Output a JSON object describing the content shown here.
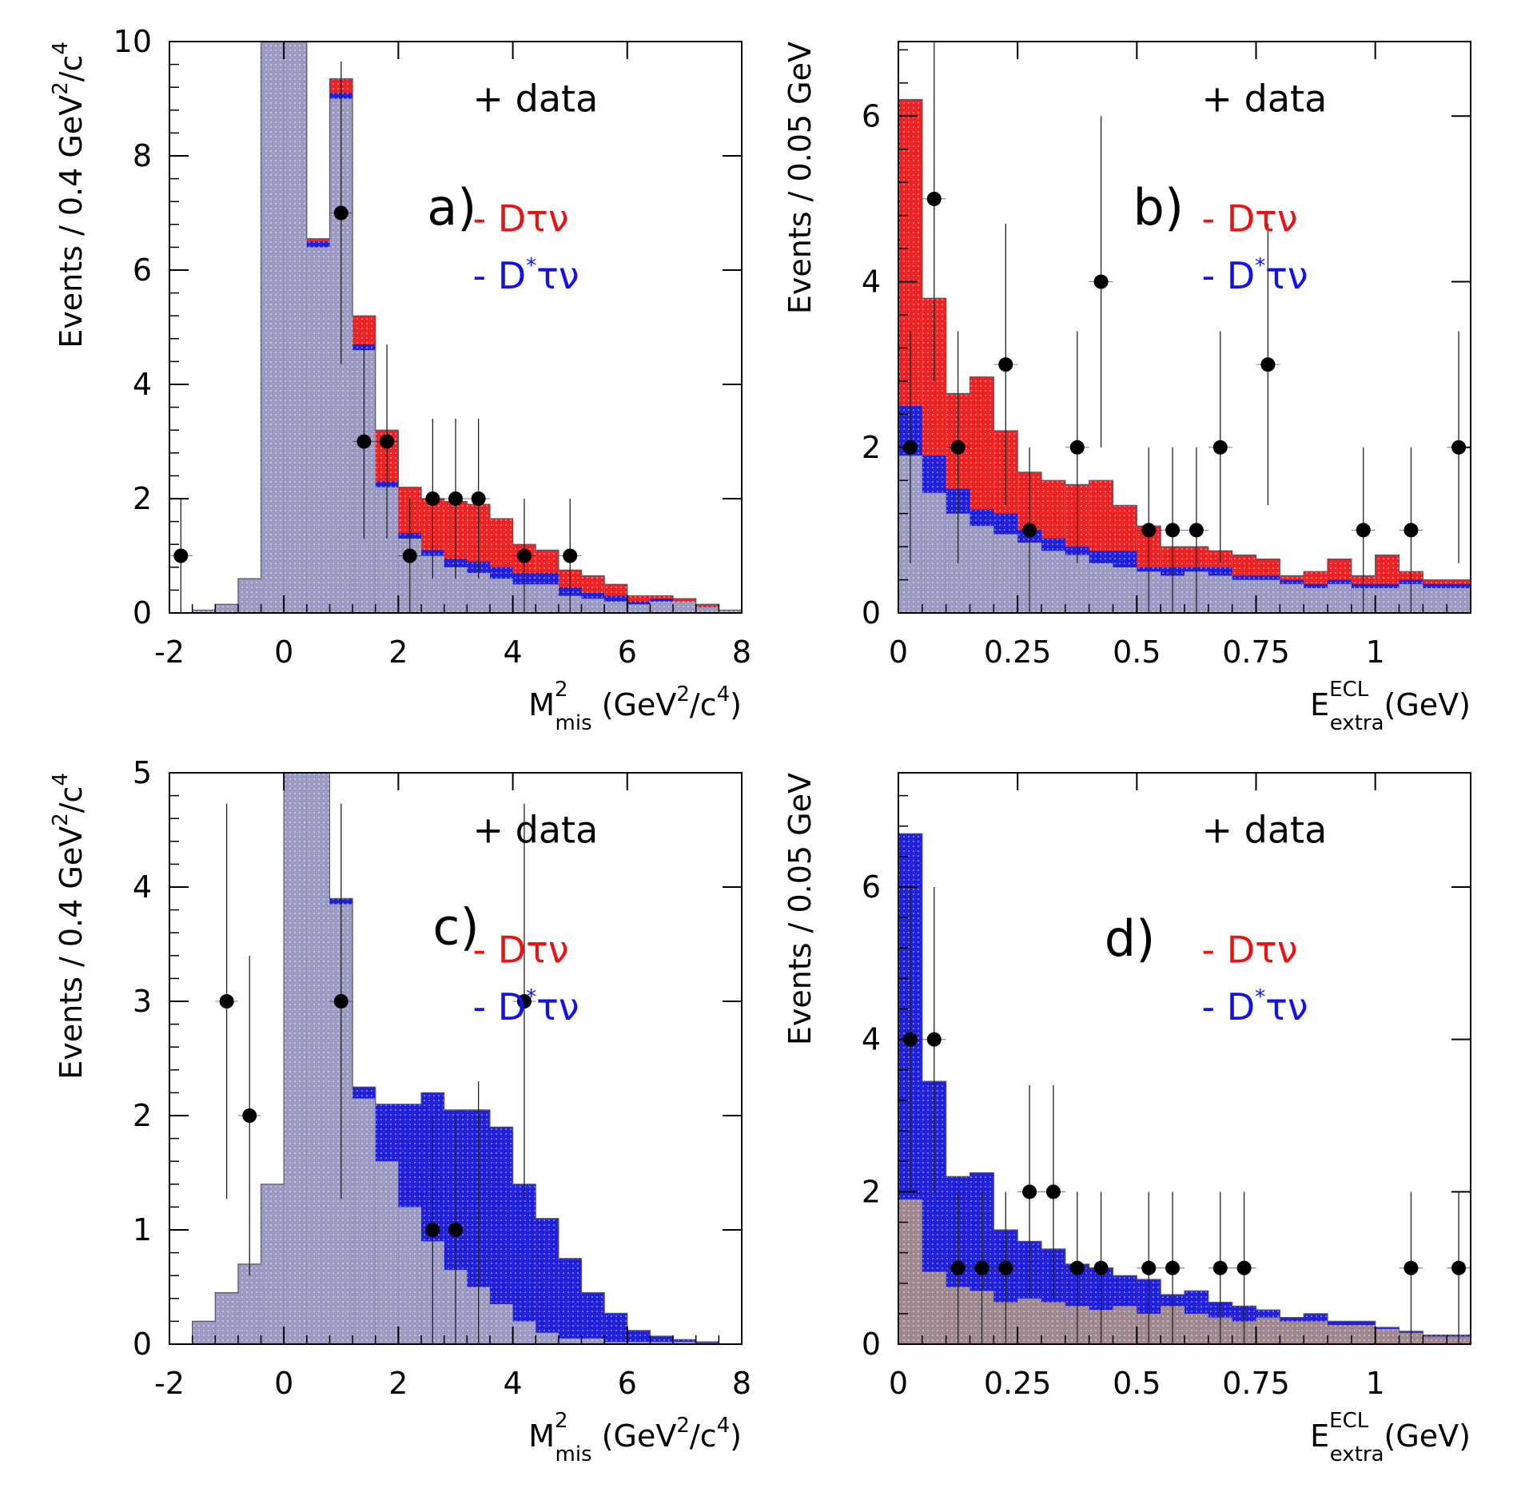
{
  "chart_data": [
    {
      "id": "a",
      "type": "histogram",
      "panel_label": "a)",
      "xlabel": {
        "main": "M",
        "sup": "2",
        "sub": "mis",
        "rest": " (GeV",
        "sup2": "2",
        "rest2": "/c",
        "sup3": "4",
        "rest3": ")"
      },
      "ylabel": {
        "main": "Events / 0.4 GeV",
        "sup": "2",
        "rest": "/c",
        "sup2": "4"
      },
      "xlim": [
        -2,
        8
      ],
      "ylim": [
        0,
        10
      ],
      "xticks": [
        -2,
        0,
        2,
        4,
        6,
        8
      ],
      "xtick_labels": [
        "-2",
        "0",
        "2",
        "4",
        "6",
        "8"
      ],
      "yticks": [
        0,
        2,
        4,
        6,
        8,
        10
      ],
      "ytick_labels": [
        "0",
        "2",
        "4",
        "6",
        "8",
        "10"
      ],
      "bin_edges": [
        -2.0,
        -1.6,
        -1.2,
        -0.8,
        -0.4,
        0.0,
        0.4,
        0.8,
        1.2,
        1.6,
        2.0,
        2.4,
        2.8,
        3.2,
        3.6,
        4.0,
        4.4,
        4.8,
        5.2,
        5.6,
        6.0,
        6.4,
        6.8,
        7.2,
        7.6,
        8.0
      ],
      "stack": [
        {
          "name": "background",
          "color": "#9a9ac2",
          "values": [
            0,
            0.05,
            0.15,
            0.6,
            10,
            10,
            6.4,
            9.0,
            4.6,
            2.2,
            1.3,
            1.0,
            0.8,
            0.7,
            0.6,
            0.5,
            0.5,
            0.3,
            0.25,
            0.2,
            0.15,
            0.2,
            0.2,
            0.1,
            0.05
          ]
        },
        {
          "name": "D*τν",
          "color": "#2020dd",
          "values": [
            0,
            0,
            0,
            0,
            0,
            0,
            0.1,
            0.1,
            0.1,
            0.1,
            0.1,
            0.1,
            0.15,
            0.2,
            0.2,
            0.2,
            0.2,
            0.15,
            0.1,
            0.1,
            0.05,
            0.05,
            0,
            0,
            0
          ]
        },
        {
          "name": "Dτν",
          "color": "#ee2222",
          "values": [
            0,
            0,
            0,
            0,
            0,
            0,
            0.05,
            0.25,
            0.5,
            0.9,
            0.8,
            0.9,
            1.0,
            1.0,
            0.85,
            0.5,
            0.4,
            0.3,
            0.3,
            0.2,
            0.1,
            0.05,
            0.05,
            0.05,
            0
          ]
        }
      ],
      "data_points": [
        {
          "x": -1.8,
          "y": 1,
          "err": 1
        },
        {
          "x": 1.0,
          "y": 7,
          "err": 2.65
        },
        {
          "x": 1.4,
          "y": 3,
          "err": 1.7
        },
        {
          "x": 1.8,
          "y": 3,
          "err": 1.7
        },
        {
          "x": 2.2,
          "y": 1,
          "err": 1
        },
        {
          "x": 2.6,
          "y": 2,
          "err": 1.4
        },
        {
          "x": 3.0,
          "y": 2,
          "err": 1.4
        },
        {
          "x": 3.4,
          "y": 2,
          "err": 1.4
        },
        {
          "x": 4.2,
          "y": 1,
          "err": 1
        },
        {
          "x": 5.0,
          "y": 1,
          "err": 1
        }
      ],
      "legend": [
        {
          "prefix": "+ ",
          "text": "data",
          "color": "#000000"
        },
        {
          "prefix": "- ",
          "text": "Dτν",
          "color": "#ee1111"
        },
        {
          "prefix": "- ",
          "text": "D*τν",
          "color": "#1111ee"
        }
      ]
    },
    {
      "id": "b",
      "type": "histogram",
      "panel_label": "b)",
      "xlabel": {
        "main": "E",
        "sup": "ECL",
        "sub": "extra",
        "rest": "(GeV)"
      },
      "ylabel": {
        "main": "Events / 0.05 GeV"
      },
      "xlim": [
        0,
        1.2
      ],
      "ylim": [
        0,
        6.9
      ],
      "xticks": [
        0,
        0.25,
        0.5,
        0.75,
        1
      ],
      "xtick_labels": [
        "0",
        "0.25",
        "0.5",
        "0.75",
        "1"
      ],
      "yticks": [
        0,
        2,
        4,
        6
      ],
      "ytick_labels": [
        "0",
        "2",
        "4",
        "6"
      ],
      "bin_edges": [
        0.0,
        0.05,
        0.1,
        0.15,
        0.2,
        0.25,
        0.3,
        0.35,
        0.4,
        0.45,
        0.5,
        0.55,
        0.6,
        0.65,
        0.7,
        0.75,
        0.8,
        0.85,
        0.9,
        0.95,
        1.0,
        1.05,
        1.1,
        1.15,
        1.2
      ],
      "stack": [
        {
          "name": "background",
          "color": "#9a9ac2",
          "values": [
            1.9,
            1.45,
            1.2,
            1.05,
            0.95,
            0.85,
            0.75,
            0.7,
            0.6,
            0.55,
            0.5,
            0.45,
            0.5,
            0.45,
            0.4,
            0.4,
            0.35,
            0.3,
            0.35,
            0.3,
            0.3,
            0.35,
            0.3,
            0.3
          ]
        },
        {
          "name": "D*τν",
          "color": "#2020dd",
          "values": [
            0.6,
            0.45,
            0.3,
            0.2,
            0.25,
            0.15,
            0.15,
            0.1,
            0.15,
            0.2,
            0.05,
            0.1,
            0.05,
            0.1,
            0.05,
            0.05,
            0.05,
            0.05,
            0.05,
            0.05,
            0.05,
            0.05,
            0.05,
            0.05
          ]
        },
        {
          "name": "Dτν",
          "color": "#ee2222",
          "values": [
            3.7,
            1.9,
            1.15,
            1.6,
            1.0,
            0.7,
            0.7,
            0.75,
            0.85,
            0.55,
            0.5,
            0.25,
            0.25,
            0.2,
            0.25,
            0.2,
            0.05,
            0.15,
            0.25,
            0.1,
            0.35,
            0.1,
            0.05,
            0.05
          ]
        }
      ],
      "data_points": [
        {
          "x": 0.025,
          "y": 2,
          "err": 1.4
        },
        {
          "x": 0.075,
          "y": 5,
          "err": 2.2
        },
        {
          "x": 0.125,
          "y": 2,
          "err": 1.4
        },
        {
          "x": 0.225,
          "y": 3,
          "err": 1.7
        },
        {
          "x": 0.275,
          "y": 1,
          "err": 1
        },
        {
          "x": 0.375,
          "y": 2,
          "err": 1.4
        },
        {
          "x": 0.425,
          "y": 4,
          "err": 2
        },
        {
          "x": 0.525,
          "y": 1,
          "err": 1
        },
        {
          "x": 0.575,
          "y": 1,
          "err": 1
        },
        {
          "x": 0.625,
          "y": 1,
          "err": 1
        },
        {
          "x": 0.675,
          "y": 2,
          "err": 1.4
        },
        {
          "x": 0.775,
          "y": 3,
          "err": 1.7
        },
        {
          "x": 0.975,
          "y": 1,
          "err": 1
        },
        {
          "x": 1.075,
          "y": 1,
          "err": 1
        },
        {
          "x": 1.175,
          "y": 2,
          "err": 1.4
        }
      ],
      "legend": [
        {
          "prefix": "+ ",
          "text": "data",
          "color": "#000000"
        },
        {
          "prefix": "- ",
          "text": "Dτν",
          "color": "#ee1111"
        },
        {
          "prefix": "- ",
          "text": "D*τν",
          "color": "#1111ee"
        }
      ]
    },
    {
      "id": "c",
      "type": "histogram",
      "panel_label": "c)",
      "xlabel": {
        "main": "M",
        "sup": "2",
        "sub": "mis",
        "rest": " (GeV",
        "sup2": "2",
        "rest2": "/c",
        "sup3": "4",
        "rest3": ")"
      },
      "ylabel": {
        "main": "Events / 0.4 GeV",
        "sup": "2",
        "rest": "/c",
        "sup2": "4"
      },
      "xlim": [
        -2,
        8
      ],
      "ylim": [
        0,
        5
      ],
      "xticks": [
        -2,
        0,
        2,
        4,
        6,
        8
      ],
      "xtick_labels": [
        "-2",
        "0",
        "2",
        "4",
        "6",
        "8"
      ],
      "yticks": [
        0,
        1,
        2,
        3,
        4,
        5
      ],
      "ytick_labels": [
        "0",
        "1",
        "2",
        "3",
        "4",
        "5"
      ],
      "bin_edges": [
        -2.0,
        -1.6,
        -1.2,
        -0.8,
        -0.4,
        0.0,
        0.4,
        0.8,
        1.2,
        1.6,
        2.0,
        2.4,
        2.8,
        3.2,
        3.6,
        4.0,
        4.4,
        4.8,
        5.2,
        5.6,
        6.0,
        6.4,
        6.8,
        7.2,
        7.6,
        8.0
      ],
      "stack": [
        {
          "name": "background",
          "color": "#9a9ac2",
          "values": [
            0,
            0.2,
            0.45,
            0.7,
            1.4,
            5,
            5,
            3.85,
            2.15,
            1.6,
            1.2,
            0.9,
            0.65,
            0.5,
            0.35,
            0.2,
            0.1,
            0.05,
            0.05,
            0.02,
            0.02,
            0.02,
            0.02,
            0.01,
            0
          ]
        },
        {
          "name": "D*τν",
          "color": "#2020dd",
          "values": [
            0,
            0,
            0,
            0,
            0,
            0,
            0,
            0.05,
            0.1,
            0.5,
            0.9,
            1.3,
            1.4,
            1.55,
            1.55,
            1.2,
            1.0,
            0.7,
            0.4,
            0.25,
            0.1,
            0.05,
            0.02,
            0.01,
            0
          ]
        },
        {
          "name": "Dτν",
          "color": "#ee2222",
          "values": [
            0,
            0,
            0,
            0,
            0,
            0,
            0,
            0,
            0,
            0,
            0,
            0,
            0,
            0,
            0,
            0,
            0,
            0,
            0,
            0,
            0,
            0,
            0,
            0,
            0
          ]
        }
      ],
      "data_points": [
        {
          "x": -1.0,
          "y": 3,
          "err": 1.73
        },
        {
          "x": -0.6,
          "y": 2,
          "err": 1.4
        },
        {
          "x": 1.0,
          "y": 3,
          "err": 1.73
        },
        {
          "x": 2.6,
          "y": 1,
          "err": 1
        },
        {
          "x": 3.0,
          "y": 1,
          "err": 1
        },
        {
          "x": 3.4,
          "y": 0,
          "err": 2.3
        },
        {
          "x": 4.2,
          "y": 3,
          "err": 1.73
        }
      ],
      "legend": [
        {
          "prefix": "+ ",
          "text": "data",
          "color": "#000000"
        },
        {
          "prefix": "- ",
          "text": "Dτν",
          "color": "#ee1111"
        },
        {
          "prefix": "- ",
          "text": "D*τν",
          "color": "#1111ee"
        }
      ]
    },
    {
      "id": "d",
      "type": "histogram",
      "panel_label": "d)",
      "xlabel": {
        "main": "E",
        "sup": "ECL",
        "sub": "extra",
        "rest": "(GeV)"
      },
      "ylabel": {
        "main": "Events / 0.05 GeV"
      },
      "xlim": [
        0,
        1.2
      ],
      "ylim": [
        0,
        7.5
      ],
      "xticks": [
        0,
        0.25,
        0.5,
        0.75,
        1
      ],
      "xtick_labels": [
        "0",
        "0.25",
        "0.5",
        "0.75",
        "1"
      ],
      "yticks": [
        0,
        2,
        4,
        6
      ],
      "ytick_labels": [
        "0",
        "2",
        "4",
        "6"
      ],
      "bin_edges": [
        0.0,
        0.05,
        0.1,
        0.15,
        0.2,
        0.25,
        0.3,
        0.35,
        0.4,
        0.45,
        0.5,
        0.55,
        0.6,
        0.65,
        0.7,
        0.75,
        0.8,
        0.85,
        0.9,
        0.95,
        1.0,
        1.05,
        1.1,
        1.15,
        1.2
      ],
      "stack": [
        {
          "name": "background",
          "color": "#a08890",
          "values": [
            1.9,
            0.95,
            0.75,
            0.7,
            0.55,
            0.6,
            0.55,
            0.5,
            0.45,
            0.5,
            0.4,
            0.5,
            0.4,
            0.35,
            0.3,
            0.35,
            0.3,
            0.3,
            0.25,
            0.25,
            0.2,
            0.15,
            0.1,
            0.1
          ]
        },
        {
          "name": "D*τν",
          "color": "#2020dd",
          "values": [
            4.8,
            2.5,
            1.45,
            1.55,
            0.95,
            0.75,
            0.7,
            0.55,
            0.55,
            0.4,
            0.45,
            0.15,
            0.3,
            0.2,
            0.2,
            0.1,
            0.05,
            0.1,
            0.05,
            0.05,
            0.02,
            0.02,
            0.02,
            0.02
          ]
        },
        {
          "name": "Dτν",
          "color": "#ee2222",
          "values": [
            0,
            0,
            0,
            0,
            0,
            0,
            0,
            0,
            0,
            0,
            0,
            0,
            0,
            0,
            0,
            0,
            0,
            0,
            0,
            0,
            0,
            0,
            0,
            0
          ]
        }
      ],
      "data_points": [
        {
          "x": 0.025,
          "y": 4,
          "err": 2
        },
        {
          "x": 0.075,
          "y": 4,
          "err": 2
        },
        {
          "x": 0.125,
          "y": 1,
          "err": 1
        },
        {
          "x": 0.175,
          "y": 1,
          "err": 1
        },
        {
          "x": 0.225,
          "y": 1,
          "err": 1
        },
        {
          "x": 0.275,
          "y": 2,
          "err": 1.4
        },
        {
          "x": 0.325,
          "y": 2,
          "err": 1.4
        },
        {
          "x": 0.375,
          "y": 1,
          "err": 1
        },
        {
          "x": 0.425,
          "y": 1,
          "err": 1
        },
        {
          "x": 0.525,
          "y": 1,
          "err": 1
        },
        {
          "x": 0.575,
          "y": 1,
          "err": 1
        },
        {
          "x": 0.675,
          "y": 1,
          "err": 1
        },
        {
          "x": 0.725,
          "y": 1,
          "err": 1
        },
        {
          "x": 1.075,
          "y": 1,
          "err": 1
        },
        {
          "x": 1.175,
          "y": 1,
          "err": 1
        }
      ],
      "legend": [
        {
          "prefix": "+ ",
          "text": "data",
          "color": "#000000"
        },
        {
          "prefix": "- ",
          "text": "Dτν",
          "color": "#ee1111"
        },
        {
          "prefix": "- ",
          "text": "D*τν",
          "color": "#1111ee"
        }
      ]
    }
  ]
}
